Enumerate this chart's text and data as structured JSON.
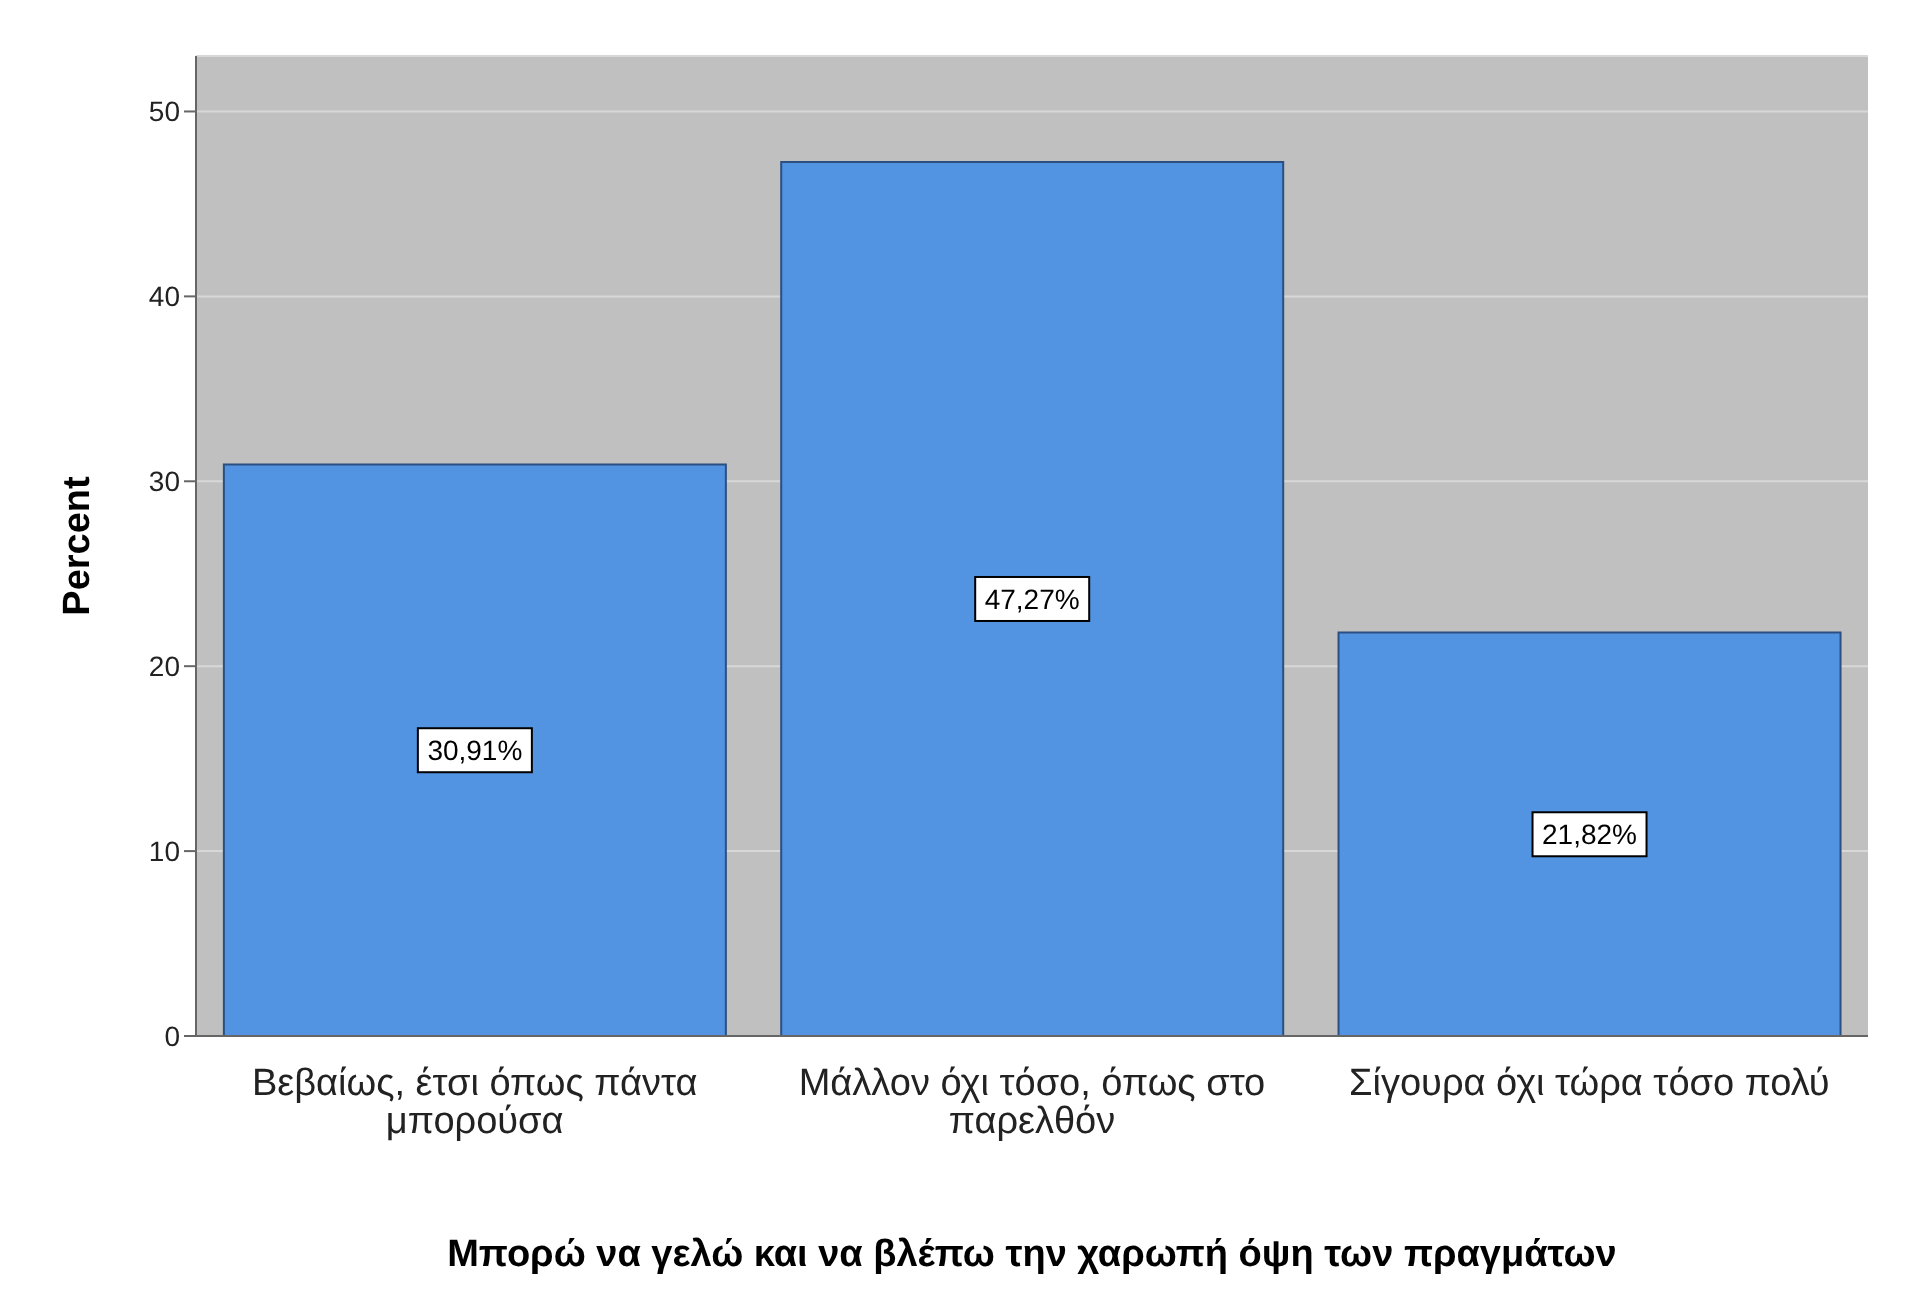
{
  "chart_data": {
    "type": "bar",
    "xlabel": "Μπορώ να γελώ και να βλέπω την χαρωπή όψη των πραγμάτων",
    "ylabel": "Percent",
    "categories": [
      "Βεβαίως, έτσι όπως πάντα μπορούσα",
      "Μάλλον όχι τόσο, όπως στο παρελθόν",
      "Σίγουρα όχι τώρα τόσο πολύ"
    ],
    "values": [
      30.91,
      47.27,
      21.82
    ],
    "value_labels": [
      "30,91%",
      "47,27%",
      "21,82%"
    ],
    "color": "#5294e2",
    "ylim": [
      0,
      53
    ],
    "yticks": [
      0,
      10,
      20,
      30,
      40,
      50
    ],
    "grid": "y"
  }
}
